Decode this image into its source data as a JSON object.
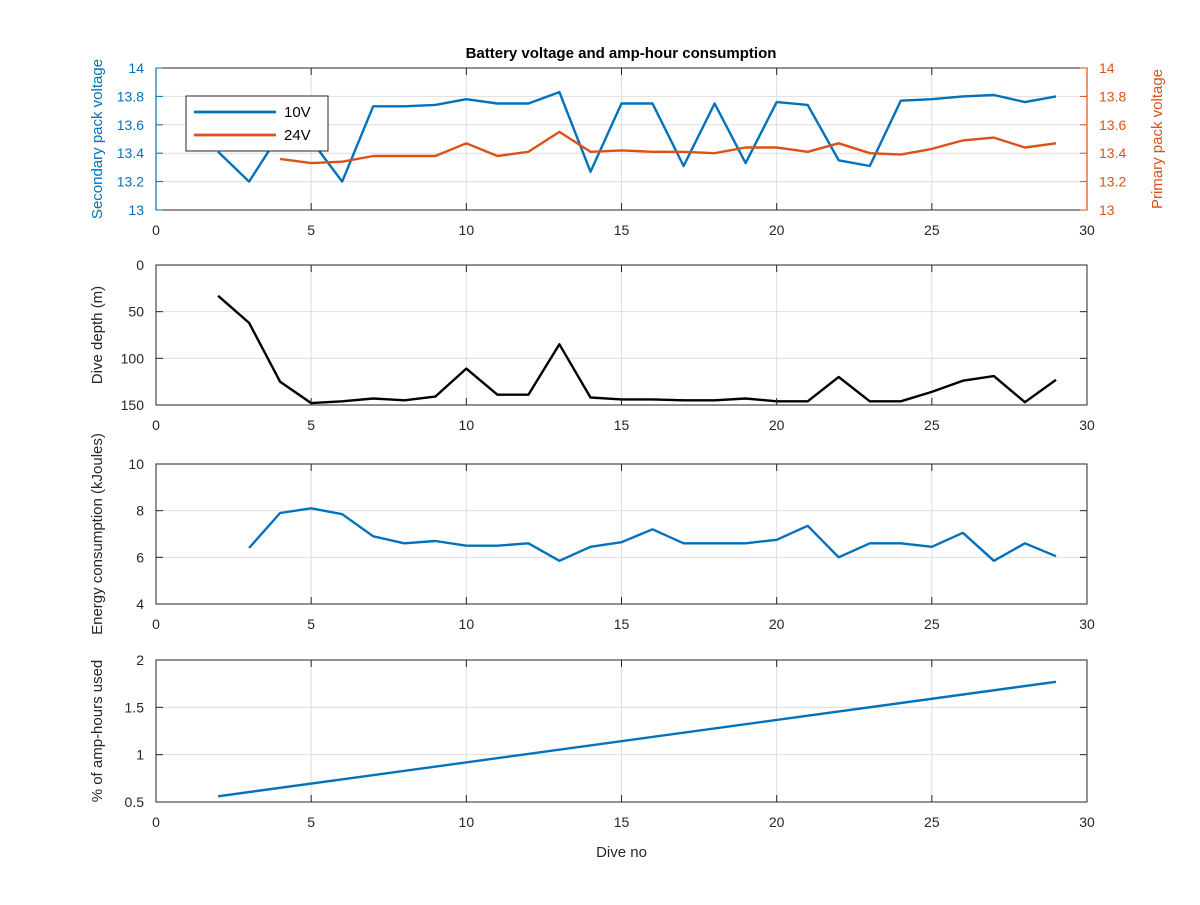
{
  "figure_title": "Battery voltage and amp-hour consumption",
  "colors": {
    "blue": "#0072BD",
    "orange": "#D95319",
    "black": "#000000",
    "grid": "#dedede",
    "axis": "#262626"
  },
  "chart_data": [
    {
      "type": "line",
      "title": "Battery voltage and amp-hour consumption",
      "xlabel": "",
      "ylabel": "Secondary pack voltage",
      "ylabel_right": "Primary pack voltage",
      "xlim": [
        0,
        30
      ],
      "ylim": [
        13,
        14
      ],
      "ylim_right": [
        13,
        14
      ],
      "xticks": [
        0,
        5,
        10,
        15,
        20,
        25,
        30
      ],
      "yticks": [
        13,
        13.2,
        13.4,
        13.6,
        13.8,
        14
      ],
      "yticks_right": [
        13,
        13.2,
        13.4,
        13.6,
        13.8,
        14
      ],
      "grid": true,
      "legend_position": "top-left",
      "series": [
        {
          "name": "10V",
          "axis": "left",
          "color": "#0072BD",
          "x": [
            2,
            3,
            4,
            5,
            6,
            7,
            8,
            9,
            10,
            11,
            12,
            13,
            14,
            15,
            16,
            17,
            18,
            19,
            20,
            21,
            22,
            23,
            24,
            25,
            26,
            27,
            28,
            29
          ],
          "y": [
            13.41,
            13.2,
            13.54,
            13.49,
            13.2,
            13.73,
            13.73,
            13.74,
            13.78,
            13.75,
            13.75,
            13.83,
            13.27,
            13.75,
            13.75,
            13.31,
            13.75,
            13.33,
            13.76,
            13.74,
            13.35,
            13.31,
            13.77,
            13.78,
            13.8,
            13.81,
            13.76,
            13.8
          ]
        },
        {
          "name": "24V",
          "axis": "right",
          "color": "#D95319",
          "x": [
            4,
            5,
            6,
            7,
            8,
            9,
            10,
            11,
            12,
            13,
            14,
            15,
            16,
            17,
            18,
            19,
            20,
            21,
            22,
            23,
            24,
            25,
            26,
            27,
            28,
            29
          ],
          "y": [
            13.36,
            13.33,
            13.34,
            13.38,
            13.38,
            13.38,
            13.47,
            13.38,
            13.41,
            13.55,
            13.41,
            13.42,
            13.41,
            13.41,
            13.4,
            13.44,
            13.44,
            13.41,
            13.47,
            13.4,
            13.39,
            13.43,
            13.49,
            13.51,
            13.44,
            13.47
          ]
        }
      ]
    },
    {
      "type": "line",
      "title": "",
      "xlabel": "",
      "ylabel": "Dive depth (m)",
      "xlim": [
        0,
        30
      ],
      "ylim": [
        0,
        150
      ],
      "y_reversed": true,
      "xticks": [
        0,
        5,
        10,
        15,
        20,
        25,
        30
      ],
      "yticks": [
        0,
        50,
        100,
        150
      ],
      "grid": true,
      "series": [
        {
          "color": "#000000",
          "x": [
            2,
            3,
            4,
            5,
            6,
            7,
            8,
            9,
            10,
            11,
            12,
            13,
            14,
            15,
            16,
            17,
            18,
            19,
            20,
            21,
            22,
            23,
            24,
            25,
            26,
            27,
            28,
            29
          ],
          "y": [
            33,
            62,
            125,
            148,
            146,
            143,
            145,
            141,
            111,
            139,
            139,
            85,
            142,
            144,
            144,
            145,
            145,
            143,
            146,
            146,
            120,
            146,
            146,
            136,
            124,
            119,
            147,
            123
          ]
        }
      ]
    },
    {
      "type": "line",
      "title": "",
      "xlabel": "",
      "ylabel": "Energy consumption (kJoules)",
      "xlim": [
        0,
        30
      ],
      "ylim": [
        4,
        10
      ],
      "xticks": [
        0,
        5,
        10,
        15,
        20,
        25,
        30
      ],
      "yticks": [
        4,
        6,
        8,
        10
      ],
      "grid": true,
      "series": [
        {
          "color": "#0072BD",
          "x": [
            3,
            4,
            5,
            6,
            7,
            8,
            9,
            10,
            11,
            12,
            13,
            14,
            15,
            16,
            17,
            18,
            19,
            20,
            21,
            22,
            23,
            24,
            25,
            26,
            27,
            28,
            29
          ],
          "y": [
            6.4,
            7.9,
            8.1,
            7.85,
            6.9,
            6.6,
            6.7,
            6.5,
            6.5,
            6.6,
            5.85,
            6.45,
            6.65,
            7.2,
            6.6,
            6.6,
            6.6,
            6.75,
            7.35,
            6.0,
            6.6,
            6.6,
            6.45,
            7.05,
            5.85,
            6.6,
            6.05
          ]
        }
      ]
    },
    {
      "type": "line",
      "title": "",
      "xlabel": "Dive no",
      "ylabel": "% of amp-hours used",
      "xlim": [
        0,
        30
      ],
      "ylim": [
        0.5,
        2
      ],
      "xticks": [
        0,
        5,
        10,
        15,
        20,
        25,
        30
      ],
      "yticks": [
        0.5,
        1,
        1.5,
        2
      ],
      "grid": true,
      "series": [
        {
          "color": "#0072BD",
          "x": [
            2,
            29
          ],
          "y": [
            0.56,
            1.77
          ]
        }
      ]
    }
  ]
}
